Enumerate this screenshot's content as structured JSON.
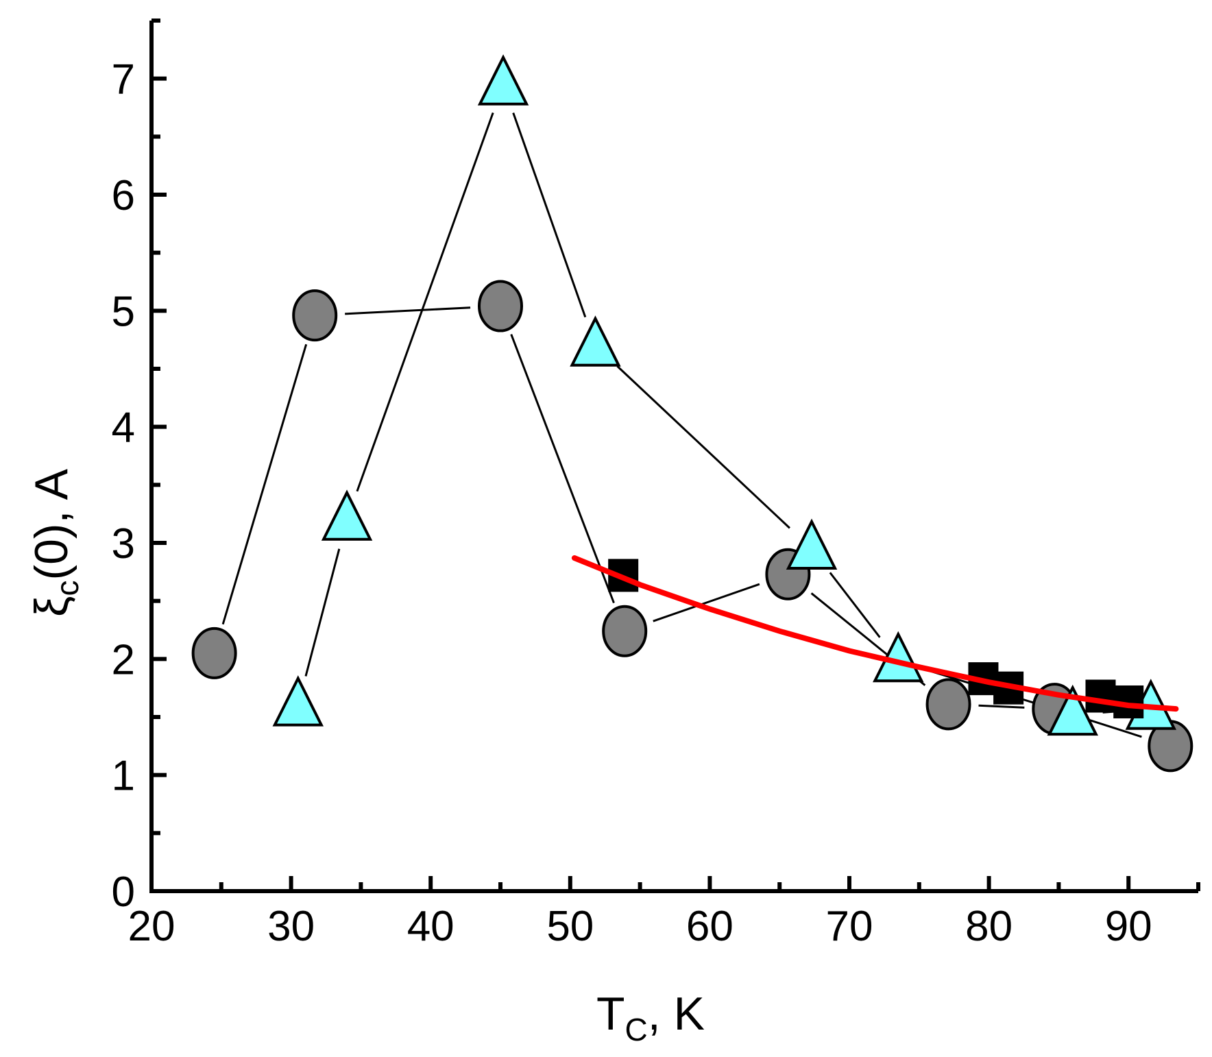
{
  "chart_data": {
    "type": "scatter",
    "xlabel": {
      "main": "T",
      "sub": "C",
      "rest": ", K"
    },
    "ylabel": {
      "main": "ξ",
      "sub": "c",
      "rest": "(0), A"
    },
    "xlim": [
      20,
      95
    ],
    "ylim": [
      0,
      7.5
    ],
    "x_ticks": [
      "20",
      "30",
      "40",
      "50",
      "60",
      "70",
      "80",
      "90"
    ],
    "y_ticks": [
      "0",
      "1",
      "2",
      "3",
      "4",
      "5",
      "6",
      "7"
    ],
    "grid": false,
    "series": [
      {
        "marker": "circle",
        "color": "#808080",
        "connected": true,
        "points": [
          {
            "x": 24.5,
            "y": 2.05
          },
          {
            "x": 31.7,
            "y": 4.96
          },
          {
            "x": 45.0,
            "y": 5.04
          },
          {
            "x": 53.9,
            "y": 2.24
          },
          {
            "x": 65.6,
            "y": 2.73
          },
          {
            "x": 77.1,
            "y": 1.61
          },
          {
            "x": 84.7,
            "y": 1.57
          },
          {
            "x": 93.0,
            "y": 1.25
          }
        ]
      },
      {
        "marker": "triangle",
        "color": "#80ffff",
        "connected": true,
        "points": [
          {
            "x": 30.5,
            "y": 1.6
          },
          {
            "x": 34.0,
            "y": 3.2
          },
          {
            "x": 45.2,
            "y": 6.95
          },
          {
            "x": 51.8,
            "y": 4.7
          },
          {
            "x": 67.3,
            "y": 2.95
          },
          {
            "x": 73.5,
            "y": 1.98
          },
          {
            "x": 86.0,
            "y": 1.52
          },
          {
            "x": 91.6,
            "y": 1.57
          }
        ]
      },
      {
        "marker": "square",
        "color": "#000000",
        "connected": false,
        "points": [
          {
            "x": 53.8,
            "y": 2.72
          },
          {
            "x": 79.6,
            "y": 1.83
          },
          {
            "x": 81.4,
            "y": 1.75
          },
          {
            "x": 88.0,
            "y": 1.68
          },
          {
            "x": 90.0,
            "y": 1.63
          }
        ]
      },
      {
        "marker": "line",
        "color": "#ff0000",
        "connected": true,
        "fit": true,
        "points": [
          {
            "x": 50.3,
            "y": 2.87
          },
          {
            "x": 55,
            "y": 2.64
          },
          {
            "x": 60,
            "y": 2.43
          },
          {
            "x": 65,
            "y": 2.24
          },
          {
            "x": 70,
            "y": 2.07
          },
          {
            "x": 75,
            "y": 1.93
          },
          {
            "x": 80,
            "y": 1.8
          },
          {
            "x": 85,
            "y": 1.69
          },
          {
            "x": 90,
            "y": 1.6
          },
          {
            "x": 93.4,
            "y": 1.57
          }
        ]
      }
    ]
  }
}
